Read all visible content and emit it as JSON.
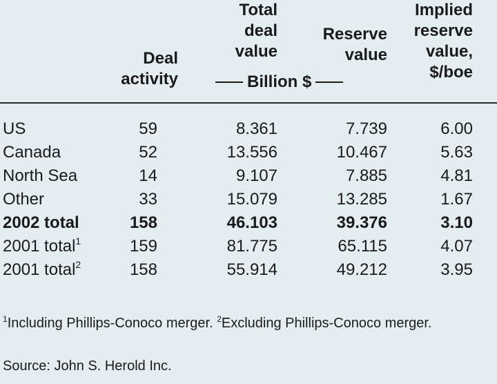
{
  "header": {
    "deal_activity": [
      "Deal",
      "activity"
    ],
    "total_deal_value": [
      "Total",
      "deal",
      "value"
    ],
    "reserve_value": [
      "Reserve",
      "value"
    ],
    "implied_reserve_value": [
      "Implied",
      "reserve",
      "value,",
      "$/boe"
    ],
    "unit_label": "Billion $"
  },
  "rows": [
    {
      "region": "US",
      "sup": "",
      "deals": "59",
      "total": "8.361",
      "reserve": "7.739",
      "implied": "6.00",
      "bold": false
    },
    {
      "region": "Canada",
      "sup": "",
      "deals": "52",
      "total": "13.556",
      "reserve": "10.467",
      "implied": "5.63",
      "bold": false
    },
    {
      "region": "North Sea",
      "sup": "",
      "deals": "14",
      "total": "9.107",
      "reserve": "7.885",
      "implied": "4.81",
      "bold": false
    },
    {
      "region": "Other",
      "sup": "",
      "deals": "33",
      "total": "15.079",
      "reserve": "13.285",
      "implied": "1.67",
      "bold": false
    },
    {
      "region": "2002 total",
      "sup": "",
      "deals": "158",
      "total": "46.103",
      "reserve": "39.376",
      "implied": "3.10",
      "bold": true
    },
    {
      "region": "2001 total",
      "sup": "1",
      "deals": "159",
      "total": "81.775",
      "reserve": "65.115",
      "implied": "4.07",
      "bold": false
    },
    {
      "region": "2001 total",
      "sup": "2",
      "deals": "158",
      "total": "55.914",
      "reserve": "49.212",
      "implied": "3.95",
      "bold": false
    }
  ],
  "footnotes": {
    "note1_marker": "1",
    "note1": "Including Phillips-Conoco merger. ",
    "note2_marker": "2",
    "note2": "Excluding Phillips-Conoco merger.",
    "source": "Source: John S. Herold Inc."
  },
  "colors": {
    "background": "#e4eef1",
    "text": "#1a1a1a"
  }
}
